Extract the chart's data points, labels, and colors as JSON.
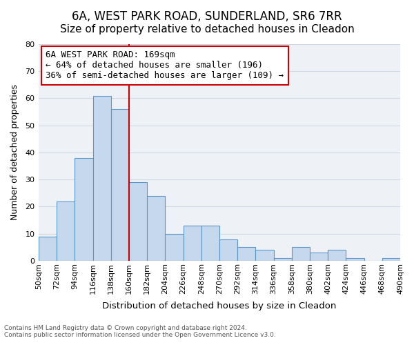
{
  "title": "6A, WEST PARK ROAD, SUNDERLAND, SR6 7RR",
  "subtitle": "Size of property relative to detached houses in Cleadon",
  "xlabel": "Distribution of detached houses by size in Cleadon",
  "ylabel": "Number of detached properties",
  "footer_line1": "Contains HM Land Registry data © Crown copyright and database right 2024.",
  "footer_line2": "Contains public sector information licensed under the Open Government Licence v3.0.",
  "bin_labels": [
    "50sqm",
    "72sqm",
    "94sqm",
    "116sqm",
    "138sqm",
    "160sqm",
    "182sqm",
    "204sqm",
    "226sqm",
    "248sqm",
    "270sqm",
    "292sqm",
    "314sqm",
    "336sqm",
    "358sqm",
    "380sqm",
    "402sqm",
    "424sqm",
    "446sqm",
    "468sqm",
    "490sqm"
  ],
  "bar_heights": [
    9,
    22,
    38,
    61,
    56,
    29,
    24,
    10,
    13,
    13,
    8,
    5,
    4,
    1,
    5,
    3,
    4,
    1,
    0,
    1
  ],
  "ylim": [
    0,
    80
  ],
  "yticks": [
    0,
    10,
    20,
    30,
    40,
    50,
    60,
    70,
    80
  ],
  "bar_color": "#c5d8ed",
  "bar_edge_color": "#5a96c8",
  "grid_color": "#d0d8e4",
  "background_color": "#eef2f7",
  "property_line_x": 5.0,
  "property_line_color": "#cc0000",
  "annotation_title": "6A WEST PARK ROAD: 169sqm",
  "annotation_line1": "← 64% of detached houses are smaller (196)",
  "annotation_line2": "36% of semi-detached houses are larger (109) →",
  "annotation_box_color": "#ffffff",
  "annotation_box_edge": "#cc0000",
  "title_fontsize": 12,
  "subtitle_fontsize": 11,
  "axis_fontsize": 9,
  "tick_fontsize": 8,
  "annotation_fontsize": 9
}
